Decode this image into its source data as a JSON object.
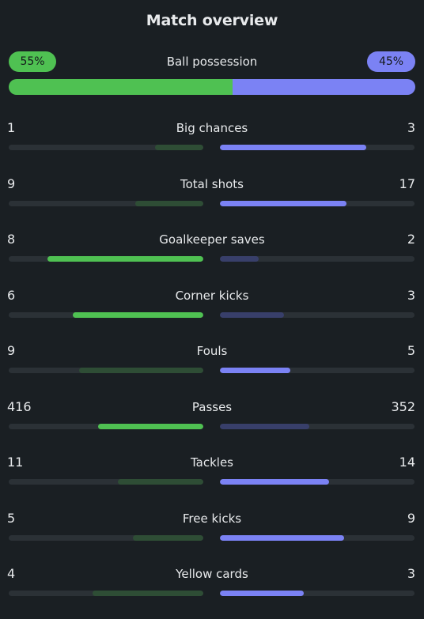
{
  "title": "Match overview",
  "colors": {
    "home": "#4fc152",
    "away": "#7b82f4",
    "home_dim": "#2e4d35",
    "away_dim": "#383f6a",
    "track": "#2b3136",
    "background": "#1a1f23"
  },
  "possession": {
    "label": "Ball possession",
    "home": "55%",
    "away": "45%",
    "home_fraction": 0.55,
    "away_fraction": 0.45
  },
  "stats": [
    {
      "label": "Big chances",
      "home": "1",
      "away": "3",
      "home_fraction": 0.25,
      "away_fraction": 0.75,
      "leader": "away"
    },
    {
      "label": "Total shots",
      "home": "9",
      "away": "17",
      "home_fraction": 0.35,
      "away_fraction": 0.65,
      "leader": "away"
    },
    {
      "label": "Goalkeeper saves",
      "home": "8",
      "away": "2",
      "home_fraction": 0.8,
      "away_fraction": 0.2,
      "leader": "home"
    },
    {
      "label": "Corner kicks",
      "home": "6",
      "away": "3",
      "home_fraction": 0.67,
      "away_fraction": 0.33,
      "leader": "home"
    },
    {
      "label": "Fouls",
      "home": "9",
      "away": "5",
      "home_fraction": 0.64,
      "away_fraction": 0.36,
      "leader": "away"
    },
    {
      "label": "Passes",
      "home": "416",
      "away": "352",
      "home_fraction": 0.54,
      "away_fraction": 0.46,
      "leader": "home"
    },
    {
      "label": "Tackles",
      "home": "11",
      "away": "14",
      "home_fraction": 0.44,
      "away_fraction": 0.56,
      "leader": "away"
    },
    {
      "label": "Free kicks",
      "home": "5",
      "away": "9",
      "home_fraction": 0.36,
      "away_fraction": 0.64,
      "leader": "away"
    },
    {
      "label": "Yellow cards",
      "home": "4",
      "away": "3",
      "home_fraction": 0.57,
      "away_fraction": 0.43,
      "leader": "away"
    }
  ]
}
